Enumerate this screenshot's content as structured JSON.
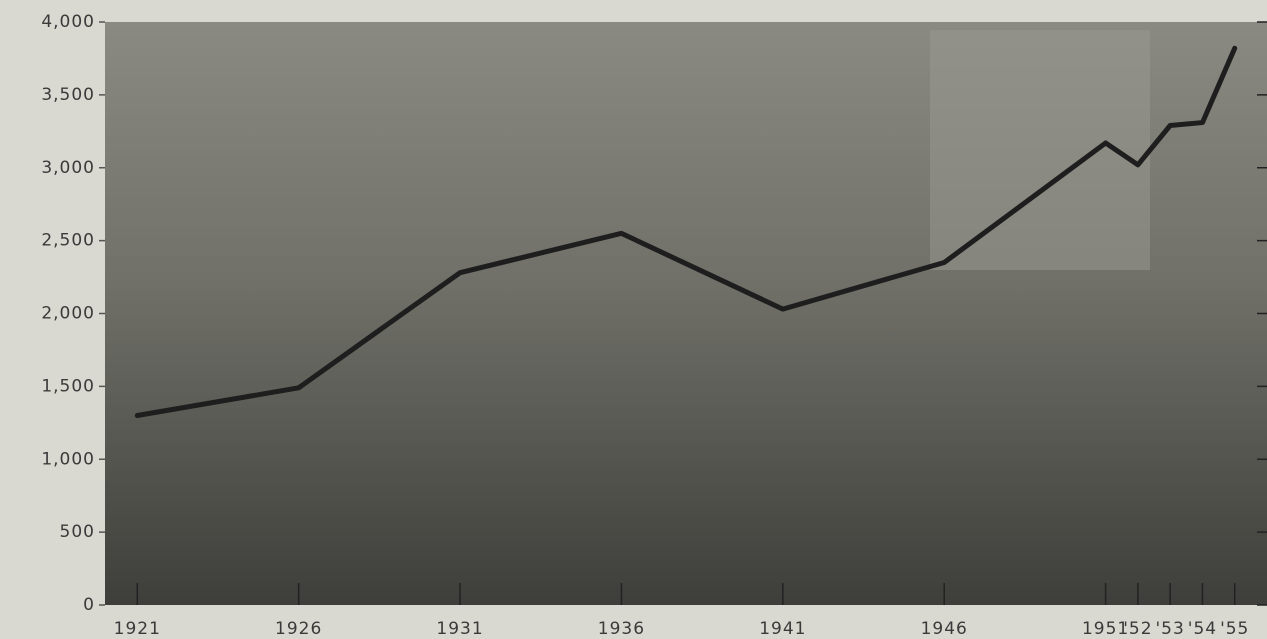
{
  "chart_data": {
    "type": "line",
    "x": [
      1921,
      1926,
      1931,
      1936,
      1941,
      1946,
      1951,
      1952,
      1953,
      1954,
      1955
    ],
    "values": [
      1300,
      1490,
      2280,
      2550,
      2030,
      2350,
      3170,
      3020,
      3290,
      3310,
      3820
    ],
    "color": "#1e1e1e",
    "xlim": [
      1920,
      1956
    ],
    "xticks": [
      1921,
      1926,
      1931,
      1936,
      1941,
      1946,
      1951,
      {
        "value": 1952,
        "label": "'52"
      },
      {
        "value": 1953,
        "label": "'53"
      },
      {
        "value": 1954,
        "label": "'54"
      },
      {
        "value": 1955,
        "label": "'55"
      }
    ],
    "ylim": [
      0,
      4000
    ],
    "yticks": [
      0,
      {
        "value": 500,
        "label": "500"
      },
      {
        "value": 1000,
        "label": "1,000"
      },
      {
        "value": 1500,
        "label": "1,500"
      },
      {
        "value": 2000,
        "label": "2,000"
      },
      {
        "value": 2500,
        "label": "2,500"
      },
      {
        "value": 3000,
        "label": "3,000"
      },
      {
        "value": 3500,
        "label": "3,500"
      },
      {
        "value": 4000,
        "label": "4,000"
      }
    ]
  }
}
